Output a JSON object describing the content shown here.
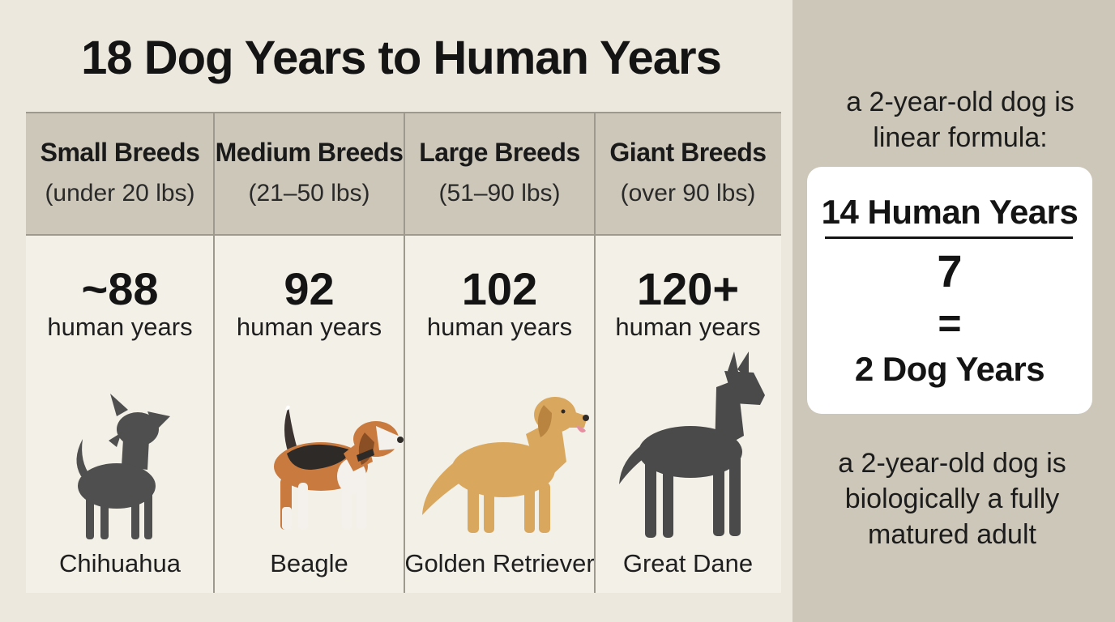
{
  "title": "18 Dog Years to Human Years",
  "breeds": [
    {
      "name": "Small Breeds",
      "range": "(under 20 lbs)",
      "value": "~88",
      "unit": "human years",
      "breed": "Chihuahua",
      "icon": "chihuahua-icon",
      "color": "#4f4f4f"
    },
    {
      "name": "Medium Breeds",
      "range": "(21–50 lbs)",
      "value": "92",
      "unit": "human years",
      "breed": "Beagle",
      "icon": "beagle-icon",
      "color": "#c97a3e"
    },
    {
      "name": "Large Breeds",
      "range": "(51–90 lbs)",
      "value": "102",
      "unit": "human years",
      "breed": "Golden Retriever",
      "icon": "golden-retriever-icon",
      "color": "#d9a85e"
    },
    {
      "name": "Giant Breeds",
      "range": "(over 90 lbs)",
      "value": "120+",
      "unit": "human years",
      "breed": "Great Dane",
      "icon": "great-dane-icon",
      "color": "#4a4a4a"
    }
  ],
  "sidebar": {
    "intro": "a 2-year-old dog is linear formula:",
    "formula": {
      "numerator": "14 Human Years",
      "denominator": "7",
      "equals": "=",
      "result": "2 Dog Years"
    },
    "conclusion": "a 2-year-old dog is biologically a fully matured adult"
  }
}
